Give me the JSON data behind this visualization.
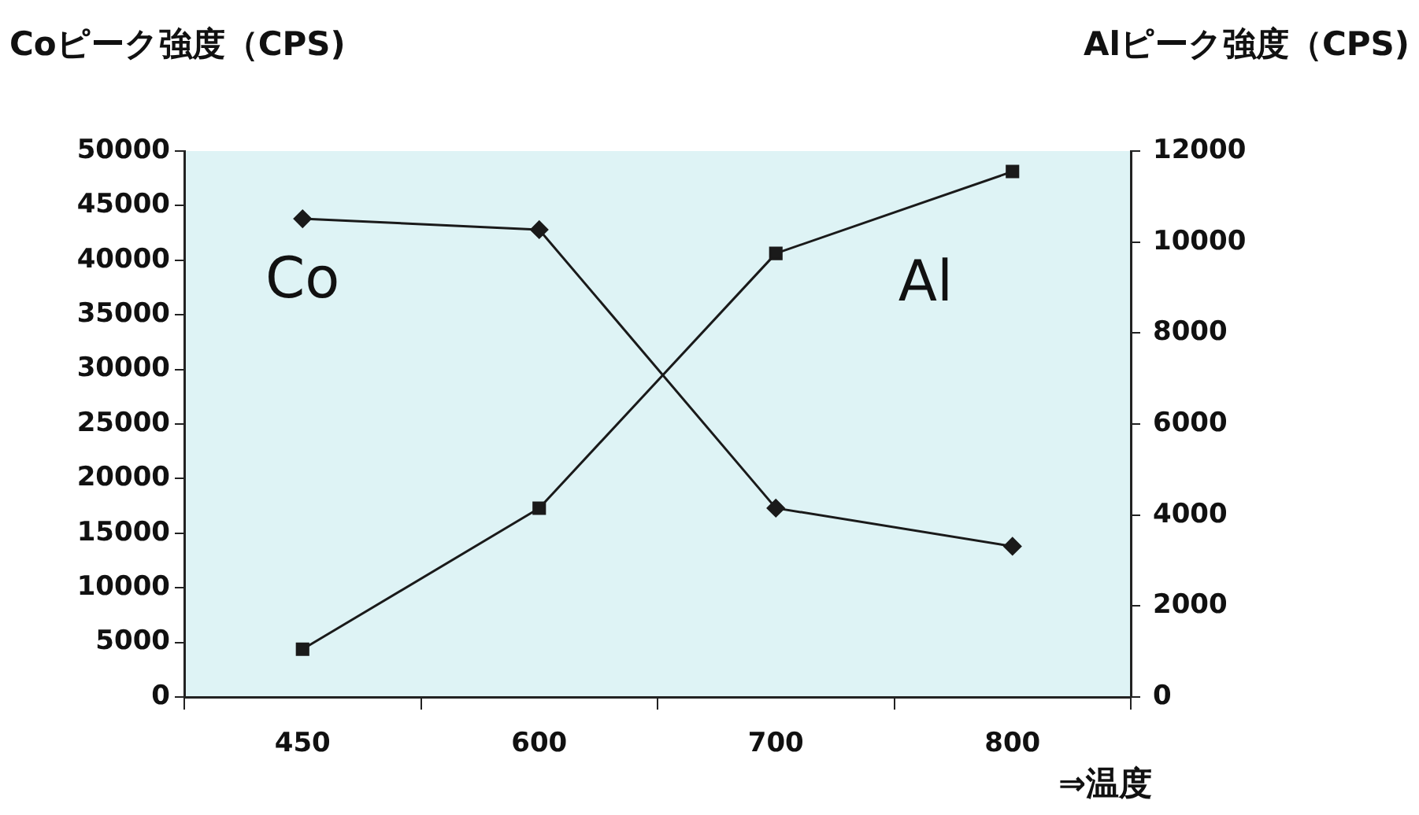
{
  "chart_data": {
    "type": "line",
    "ylabel": "Coピーク強度（CPS)",
    "y2label": "Alピーク強度（CPS)",
    "xlabel": "⇒温度",
    "categories": [
      "450",
      "600",
      "700",
      "800"
    ],
    "series": [
      {
        "name": "Co",
        "color": "#1a1a1a",
        "marker": "diamond",
        "values": [
          43800,
          42800,
          17300,
          13800
        ]
      },
      {
        "name": "Al",
        "color": "#1a1a1a",
        "marker": "square",
        "axis": "y2",
        "values": [
          1050,
          4150,
          9750,
          11550
        ]
      }
    ],
    "ylim": [
      0,
      50000
    ],
    "yticks": [
      0,
      5000,
      10000,
      15000,
      20000,
      25000,
      30000,
      35000,
      40000,
      45000,
      50000
    ],
    "y2lim": [
      0,
      12000
    ],
    "y2ticks": [
      0,
      2000,
      4000,
      6000,
      8000,
      10000,
      12000
    ],
    "grid": false,
    "legend": false
  }
}
